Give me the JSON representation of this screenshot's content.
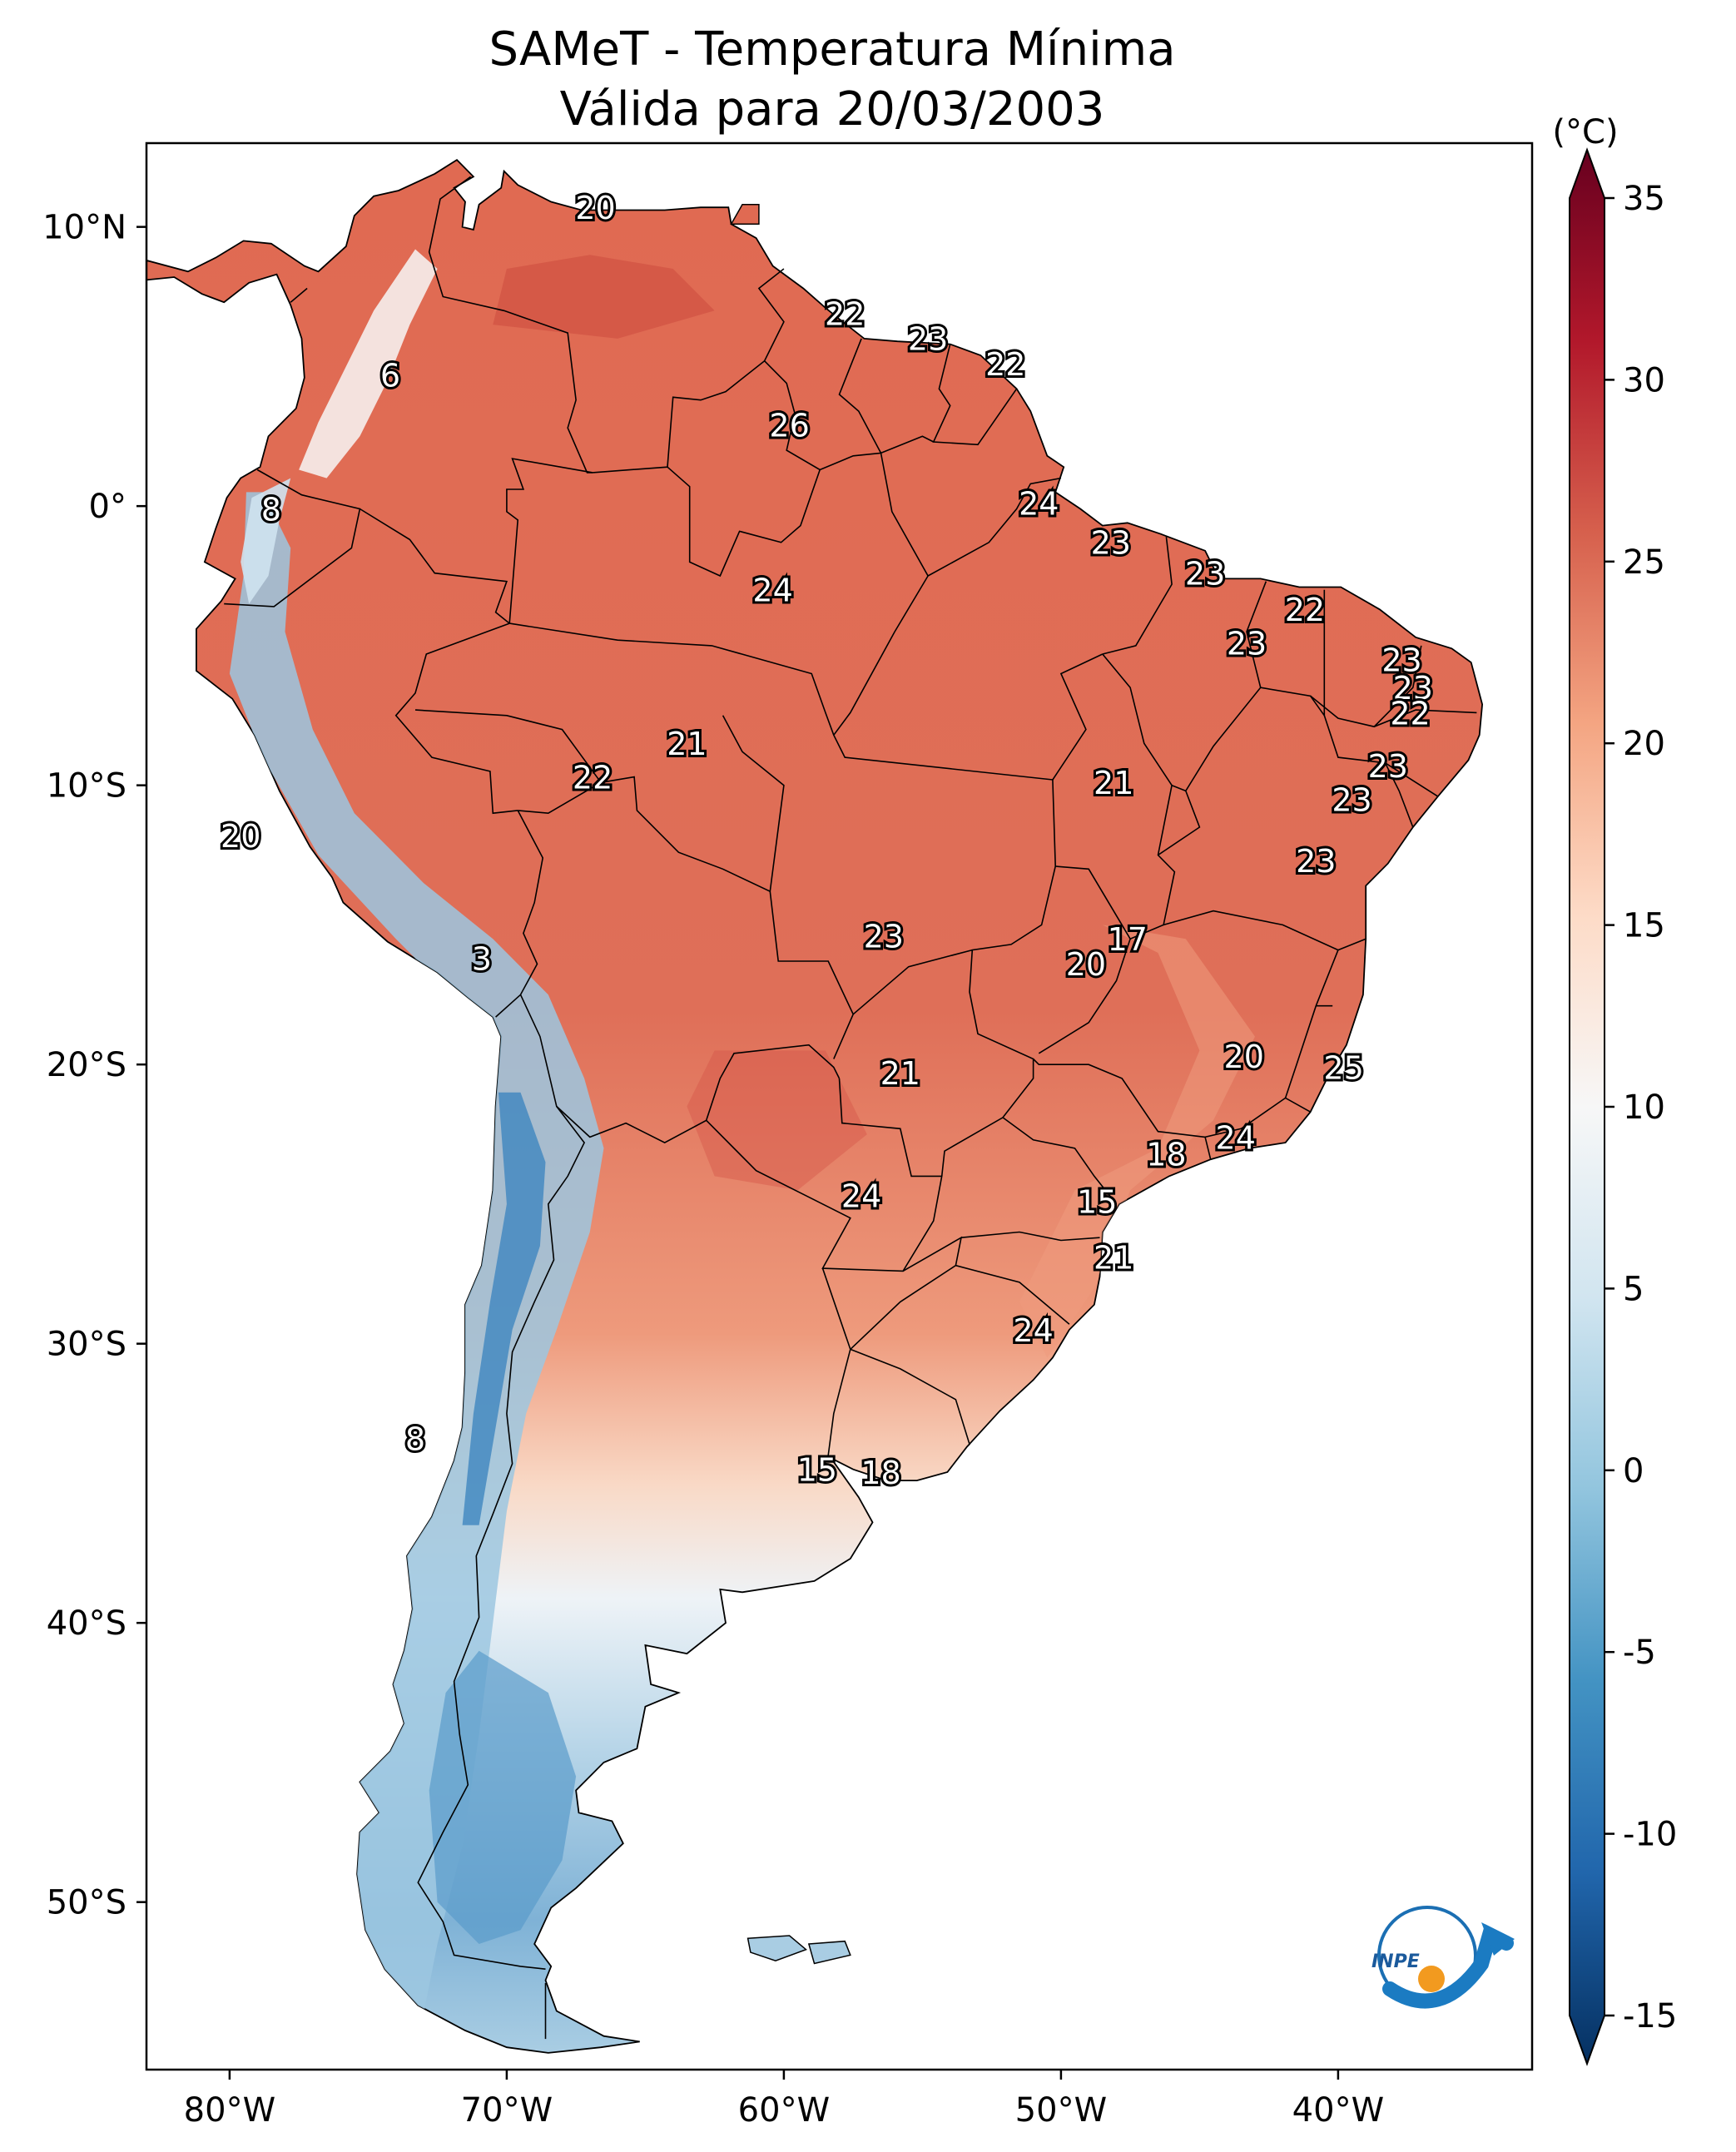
{
  "title": {
    "line1": "SAMeT - Temperatura Mínima",
    "line2": "Válida para 20/03/2003"
  },
  "map": {
    "lon_range": [
      -83,
      -33
    ],
    "lat_range": [
      -56,
      13
    ],
    "lon_ticks": [
      {
        "lon": -80,
        "label": "80°W"
      },
      {
        "lon": -70,
        "label": "70°W"
      },
      {
        "lon": -60,
        "label": "60°W"
      },
      {
        "lon": -50,
        "label": "50°W"
      },
      {
        "lon": -40,
        "label": "40°W"
      }
    ],
    "lat_ticks": [
      {
        "lat": 10,
        "label": "10°N"
      },
      {
        "lat": 0,
        "label": "0°"
      },
      {
        "lat": -10,
        "label": "10°S"
      },
      {
        "lat": -20,
        "label": "20°S"
      },
      {
        "lat": -30,
        "label": "30°S"
      },
      {
        "lat": -40,
        "label": "40°S"
      },
      {
        "lat": -50,
        "label": "50°S"
      }
    ],
    "value_labels": [
      {
        "lon": -66.8,
        "lat": 10.6,
        "text": "20"
      },
      {
        "lon": -74.2,
        "lat": 4.6,
        "text": "6"
      },
      {
        "lon": -78.5,
        "lat": -0.2,
        "text": "8"
      },
      {
        "lon": -57.8,
        "lat": 6.8,
        "text": "22"
      },
      {
        "lon": -54.8,
        "lat": 5.9,
        "text": "23"
      },
      {
        "lon": -52.0,
        "lat": 5.0,
        "text": "22"
      },
      {
        "lon": -59.8,
        "lat": 2.8,
        "text": "26"
      },
      {
        "lon": -50.8,
        "lat": 0.0,
        "text": "24"
      },
      {
        "lon": -48.2,
        "lat": -1.4,
        "text": "23"
      },
      {
        "lon": -60.4,
        "lat": -3.1,
        "text": "24"
      },
      {
        "lon": -44.8,
        "lat": -2.5,
        "text": "23"
      },
      {
        "lon": -41.2,
        "lat": -3.8,
        "text": "22"
      },
      {
        "lon": -43.3,
        "lat": -5.0,
        "text": "23"
      },
      {
        "lon": -37.7,
        "lat": -5.6,
        "text": "23"
      },
      {
        "lon": -37.3,
        "lat": -6.6,
        "text": "23"
      },
      {
        "lon": -37.4,
        "lat": -7.5,
        "text": "22"
      },
      {
        "lon": -38.2,
        "lat": -9.4,
        "text": "23"
      },
      {
        "lon": -39.5,
        "lat": -10.6,
        "text": "23"
      },
      {
        "lon": -63.5,
        "lat": -8.6,
        "text": "21"
      },
      {
        "lon": -66.9,
        "lat": -9.8,
        "text": "22"
      },
      {
        "lon": -48.1,
        "lat": -10.0,
        "text": "21"
      },
      {
        "lon": -40.8,
        "lat": -12.8,
        "text": "23"
      },
      {
        "lon": -79.6,
        "lat": -11.9,
        "text": "20"
      },
      {
        "lon": -47.6,
        "lat": -15.6,
        "text": "17"
      },
      {
        "lon": -56.4,
        "lat": -15.5,
        "text": "23"
      },
      {
        "lon": -70.9,
        "lat": -16.3,
        "text": "3"
      },
      {
        "lon": -49.1,
        "lat": -16.5,
        "text": "20"
      },
      {
        "lon": -43.4,
        "lat": -19.8,
        "text": "20"
      },
      {
        "lon": -39.8,
        "lat": -20.2,
        "text": "25"
      },
      {
        "lon": -55.8,
        "lat": -20.4,
        "text": "21"
      },
      {
        "lon": -43.7,
        "lat": -22.7,
        "text": "24"
      },
      {
        "lon": -46.2,
        "lat": -23.3,
        "text": "18"
      },
      {
        "lon": -57.2,
        "lat": -24.8,
        "text": "24"
      },
      {
        "lon": -48.7,
        "lat": -25.0,
        "text": "15"
      },
      {
        "lon": -48.1,
        "lat": -27.0,
        "text": "21"
      },
      {
        "lon": -51.0,
        "lat": -29.6,
        "text": "24"
      },
      {
        "lon": -73.3,
        "lat": -33.5,
        "text": "8"
      },
      {
        "lon": -58.8,
        "lat": -34.6,
        "text": "15"
      },
      {
        "lon": -56.5,
        "lat": -34.7,
        "text": "18"
      }
    ]
  },
  "colorbar": {
    "unit": "(°C)",
    "range": [
      -17.5,
      37.5
    ],
    "ticks": [
      {
        "v": 35,
        "label": "35"
      },
      {
        "v": 30,
        "label": "30"
      },
      {
        "v": 25,
        "label": "25"
      },
      {
        "v": 20,
        "label": "20"
      },
      {
        "v": 15,
        "label": "15"
      },
      {
        "v": 10,
        "label": "10"
      },
      {
        "v": 5,
        "label": "5"
      },
      {
        "v": 0,
        "label": "0"
      },
      {
        "v": -5,
        "label": "-5"
      },
      {
        "v": -10,
        "label": "-10"
      },
      {
        "v": -15,
        "label": "-15"
      }
    ],
    "colors": [
      "#053061",
      "#2166ac",
      "#4393c3",
      "#92c5de",
      "#d1e5f0",
      "#f7f7f7",
      "#fddbc7",
      "#f4a582",
      "#d6604d",
      "#b2182b",
      "#67001f"
    ]
  },
  "logo": {
    "text": "INPE"
  }
}
